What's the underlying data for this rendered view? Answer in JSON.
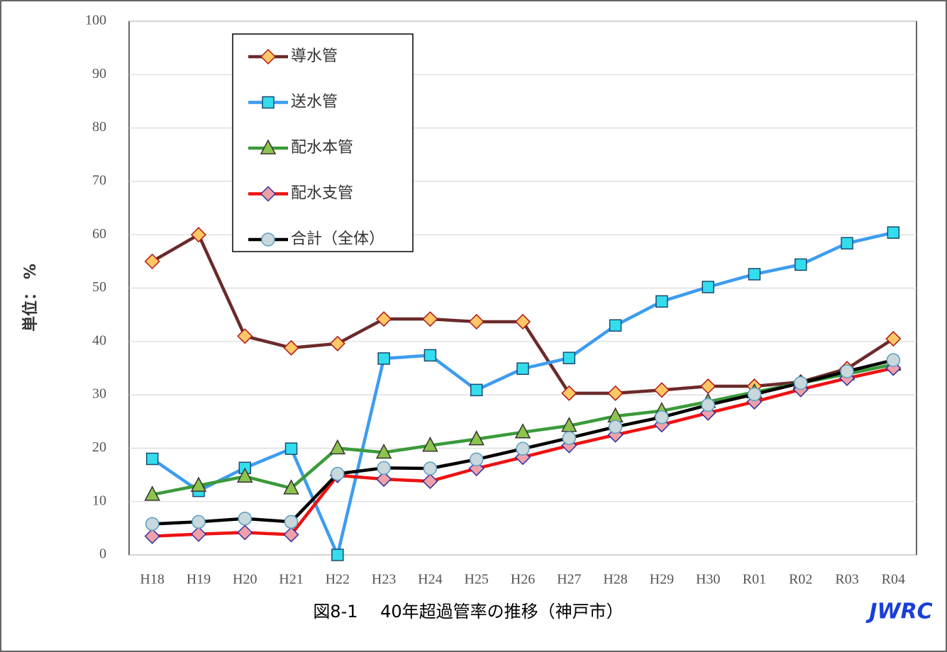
{
  "chart_data": {
    "type": "line",
    "title": "図8-1　 40年超過管率の推移（神戸市）",
    "logo": "JWRC",
    "y_label": "単位： %",
    "categories": [
      "H18",
      "H19",
      "H20",
      "H21",
      "H22",
      "H23",
      "H24",
      "H25",
      "H26",
      "H27",
      "H28",
      "H29",
      "H30",
      "R01",
      "R02",
      "R03",
      "R04"
    ],
    "ylim": [
      0,
      100
    ],
    "yticks": [
      0,
      10,
      20,
      30,
      40,
      50,
      60,
      70,
      80,
      90,
      100
    ],
    "grid": true,
    "legend": "upper left",
    "series": [
      {
        "name": "導水管",
        "color": "#6b2a2a",
        "marker": "diamond",
        "marker_fill": "#ffc766",
        "marker_stroke": "#b01818",
        "values": [
          55,
          60,
          41,
          38.8,
          39.6,
          44.2,
          44.2,
          43.7,
          43.7,
          30.3,
          30.3,
          30.9,
          31.6,
          31.6,
          32.4,
          34.9,
          40.5
        ]
      },
      {
        "name": "送水管",
        "color": "#3d9cf0",
        "marker": "square",
        "marker_fill": "#33ddee",
        "marker_stroke": "#1a4a70",
        "values": [
          18,
          12,
          16.3,
          19.9,
          0,
          36.8,
          37.4,
          30.9,
          34.9,
          36.9,
          43,
          47.5,
          50.2,
          52.6,
          54.4,
          58.4,
          60.4
        ]
      },
      {
        "name": "配水本管",
        "color": "#3a9a3a",
        "marker": "triangle",
        "marker_fill": "#8cc44c",
        "marker_stroke": "#333333",
        "values": [
          11.3,
          13,
          14.7,
          12.5,
          20,
          19.2,
          20.5,
          21.7,
          23,
          24.2,
          26,
          27,
          28.7,
          30.5,
          32.2,
          33.9,
          35.7
        ]
      },
      {
        "name": "配水支管",
        "color": "#ee1111",
        "marker": "diamond",
        "marker_fill": "#f0a0a8",
        "marker_stroke": "#3030a0",
        "values": [
          3.5,
          3.9,
          4.2,
          3.8,
          14.9,
          14.2,
          13.8,
          16.2,
          18.3,
          20.5,
          22.5,
          24.4,
          26.6,
          28.7,
          31,
          33.1,
          35
        ]
      },
      {
        "name": "合計（全体）",
        "color": "#000000",
        "marker": "circle",
        "marker_fill": "#c8d8dc",
        "marker_stroke": "#5aa0c0",
        "values": [
          5.8,
          6.2,
          6.8,
          6.2,
          15.2,
          16.3,
          16.2,
          17.9,
          19.9,
          21.9,
          24,
          25.8,
          28.1,
          30.1,
          32.2,
          34.4,
          36.5
        ]
      }
    ]
  }
}
